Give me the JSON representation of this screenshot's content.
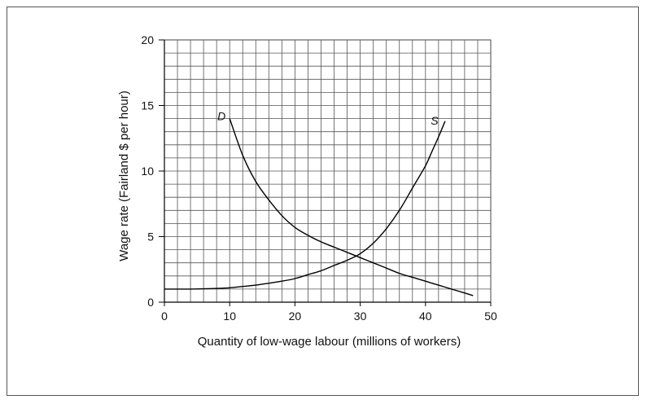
{
  "chart_data": {
    "type": "line",
    "title": "",
    "xlabel": "Quantity of low-wage labour (millions of workers)",
    "ylabel": "Wage rate (Fairland $ per hour)",
    "xlim": [
      0,
      50
    ],
    "ylim": [
      0,
      20
    ],
    "x_ticks": [
      "0",
      "10",
      "20",
      "30",
      "40",
      "50"
    ],
    "y_ticks": [
      "0",
      "5",
      "10",
      "15",
      "20"
    ],
    "grid": true,
    "grid_minor_step_x": 2,
    "grid_minor_step_y": 1,
    "series": [
      {
        "name": "D",
        "color": "#000000",
        "points": [
          [
            10,
            14
          ],
          [
            12,
            11.2
          ],
          [
            14,
            9.2
          ],
          [
            16,
            7.8
          ],
          [
            18,
            6.6
          ],
          [
            20,
            5.7
          ],
          [
            22,
            5.1
          ],
          [
            24,
            4.6
          ],
          [
            26,
            4.2
          ],
          [
            28,
            3.8
          ],
          [
            30,
            3.4
          ],
          [
            32,
            3.0
          ],
          [
            34,
            2.6
          ],
          [
            36,
            2.2
          ],
          [
            38,
            1.9
          ],
          [
            40,
            1.6
          ],
          [
            42,
            1.3
          ],
          [
            44,
            1.0
          ],
          [
            46,
            0.7
          ],
          [
            47.3,
            0.5
          ]
        ]
      },
      {
        "name": "S",
        "color": "#000000",
        "points": [
          [
            0,
            1.0
          ],
          [
            4,
            1.0
          ],
          [
            8,
            1.05
          ],
          [
            10,
            1.1
          ],
          [
            12,
            1.2
          ],
          [
            14,
            1.3
          ],
          [
            16,
            1.45
          ],
          [
            18,
            1.6
          ],
          [
            20,
            1.8
          ],
          [
            22,
            2.1
          ],
          [
            24,
            2.4
          ],
          [
            26,
            2.8
          ],
          [
            28,
            3.2
          ],
          [
            30,
            3.7
          ],
          [
            32,
            4.5
          ],
          [
            34,
            5.6
          ],
          [
            36,
            7.0
          ],
          [
            38,
            8.7
          ],
          [
            40,
            10.4
          ],
          [
            41,
            11.5
          ],
          [
            42,
            12.6
          ],
          [
            43,
            13.8
          ]
        ]
      }
    ]
  }
}
